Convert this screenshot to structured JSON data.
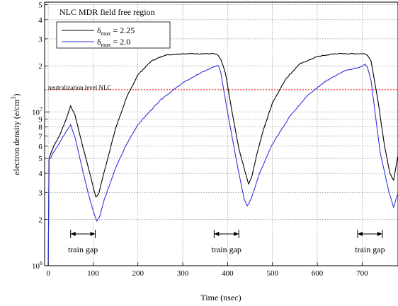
{
  "chart_data": {
    "type": "line",
    "title": "NLC MDR field free region",
    "xlabel": "Time (nsec)",
    "ylabel": "electron density (e/cm",
    "ylabel_sup": "3",
    "ylabel_close": ")",
    "x_ticks": [
      "0",
      "100",
      "200",
      "300",
      "400",
      "500",
      "600",
      "700"
    ],
    "x_tick_values": [
      0,
      100,
      200,
      300,
      400,
      500,
      600,
      700
    ],
    "xlim": [
      -8,
      780
    ],
    "y_scale": "log",
    "ylim": [
      1000000,
      52000000
    ],
    "y_major": [
      {
        "value": 1000000,
        "base": "10",
        "exp": "6"
      },
      {
        "value": 10000000,
        "base": "10",
        "exp": "7"
      }
    ],
    "y_minor_ticks": [
      {
        "value": 2000000,
        "label": "2"
      },
      {
        "value": 3000000,
        "label": "3"
      },
      {
        "value": 4000000,
        "label": "4"
      },
      {
        "value": 5000000,
        "label": "5"
      },
      {
        "value": 6000000,
        "label": "6"
      },
      {
        "value": 7000000,
        "label": "7"
      },
      {
        "value": 8000000,
        "label": "8"
      },
      {
        "value": 9000000,
        "label": "9"
      },
      {
        "value": 20000000,
        "label": "2"
      },
      {
        "value": 30000000,
        "label": "3"
      },
      {
        "value": 40000000,
        "label": "4"
      },
      {
        "value": 50000000,
        "label": "5"
      }
    ],
    "grid": true,
    "legend_position": "top-left",
    "series": [
      {
        "name": "δmax = 2.25",
        "legend_symbol": "δ",
        "legend_sub": "max",
        "legend_value": " = 2.25",
        "color": "#000000",
        "x": [
          0,
          2,
          5,
          12,
          25,
          40,
          50,
          60,
          75,
          90,
          100,
          106,
          112,
          120,
          135,
          150,
          175,
          200,
          230,
          260,
          300,
          340,
          370,
          378,
          385,
          395,
          410,
          425,
          440,
          447,
          455,
          465,
          480,
          500,
          530,
          560,
          600,
          640,
          690,
          705,
          712,
          720,
          735,
          750,
          762,
          770,
          780
        ],
        "y": [
          1000000,
          5000000,
          5300000,
          6000000,
          7000000,
          9000000,
          11000000,
          9500000,
          6300000,
          4300000,
          3300000,
          2800000,
          2900000,
          3600000,
          5300000,
          7800000,
          12500000,
          17500000,
          21500000,
          23500000,
          24000000,
          24000000,
          24000000,
          23500000,
          22000000,
          18000000,
          10000000,
          5800000,
          4000000,
          3400000,
          3900000,
          5300000,
          7700000,
          11500000,
          16500000,
          20500000,
          23000000,
          24000000,
          24000000,
          24000000,
          23500000,
          21500000,
          12000000,
          6000000,
          4000000,
          3600000,
          5200000
        ]
      },
      {
        "name": "δmax = 2.0",
        "legend_symbol": "δ",
        "legend_sub": "max",
        "legend_value": " = 2.0",
        "color": "#3333dd",
        "x": [
          0,
          2,
          5,
          12,
          25,
          40,
          50,
          60,
          75,
          90,
          100,
          108,
          115,
          125,
          150,
          175,
          200,
          250,
          300,
          340,
          375,
          380,
          385,
          400,
          420,
          437,
          444,
          452,
          470,
          500,
          540,
          580,
          620,
          660,
          700,
          707,
          712,
          720,
          740,
          760,
          770,
          780
        ],
        "y": [
          1000000,
          5000000,
          5000000,
          5500000,
          6300000,
          7500000,
          8300000,
          6800000,
          4400000,
          2900000,
          2300000,
          1950000,
          2100000,
          2700000,
          4300000,
          6200000,
          8300000,
          12000000,
          15500000,
          18000000,
          20000000,
          20000000,
          18000000,
          10000000,
          4800000,
          2700000,
          2450000,
          2700000,
          3900000,
          6200000,
          9500000,
          13000000,
          16000000,
          18500000,
          19800000,
          20500000,
          19500000,
          16000000,
          5500000,
          3000000,
          2400000,
          2950000
        ]
      }
    ],
    "reference_line": {
      "label": "neutralization level NLC",
      "value": 14000000,
      "color": "#ff2222"
    },
    "annotations": [
      {
        "label": "train gap",
        "x_start": 50,
        "x_end": 105
      },
      {
        "label": "train gap",
        "x_start": 370,
        "x_end": 425
      },
      {
        "label": "train gap",
        "x_start": 690,
        "x_end": 745
      }
    ]
  }
}
